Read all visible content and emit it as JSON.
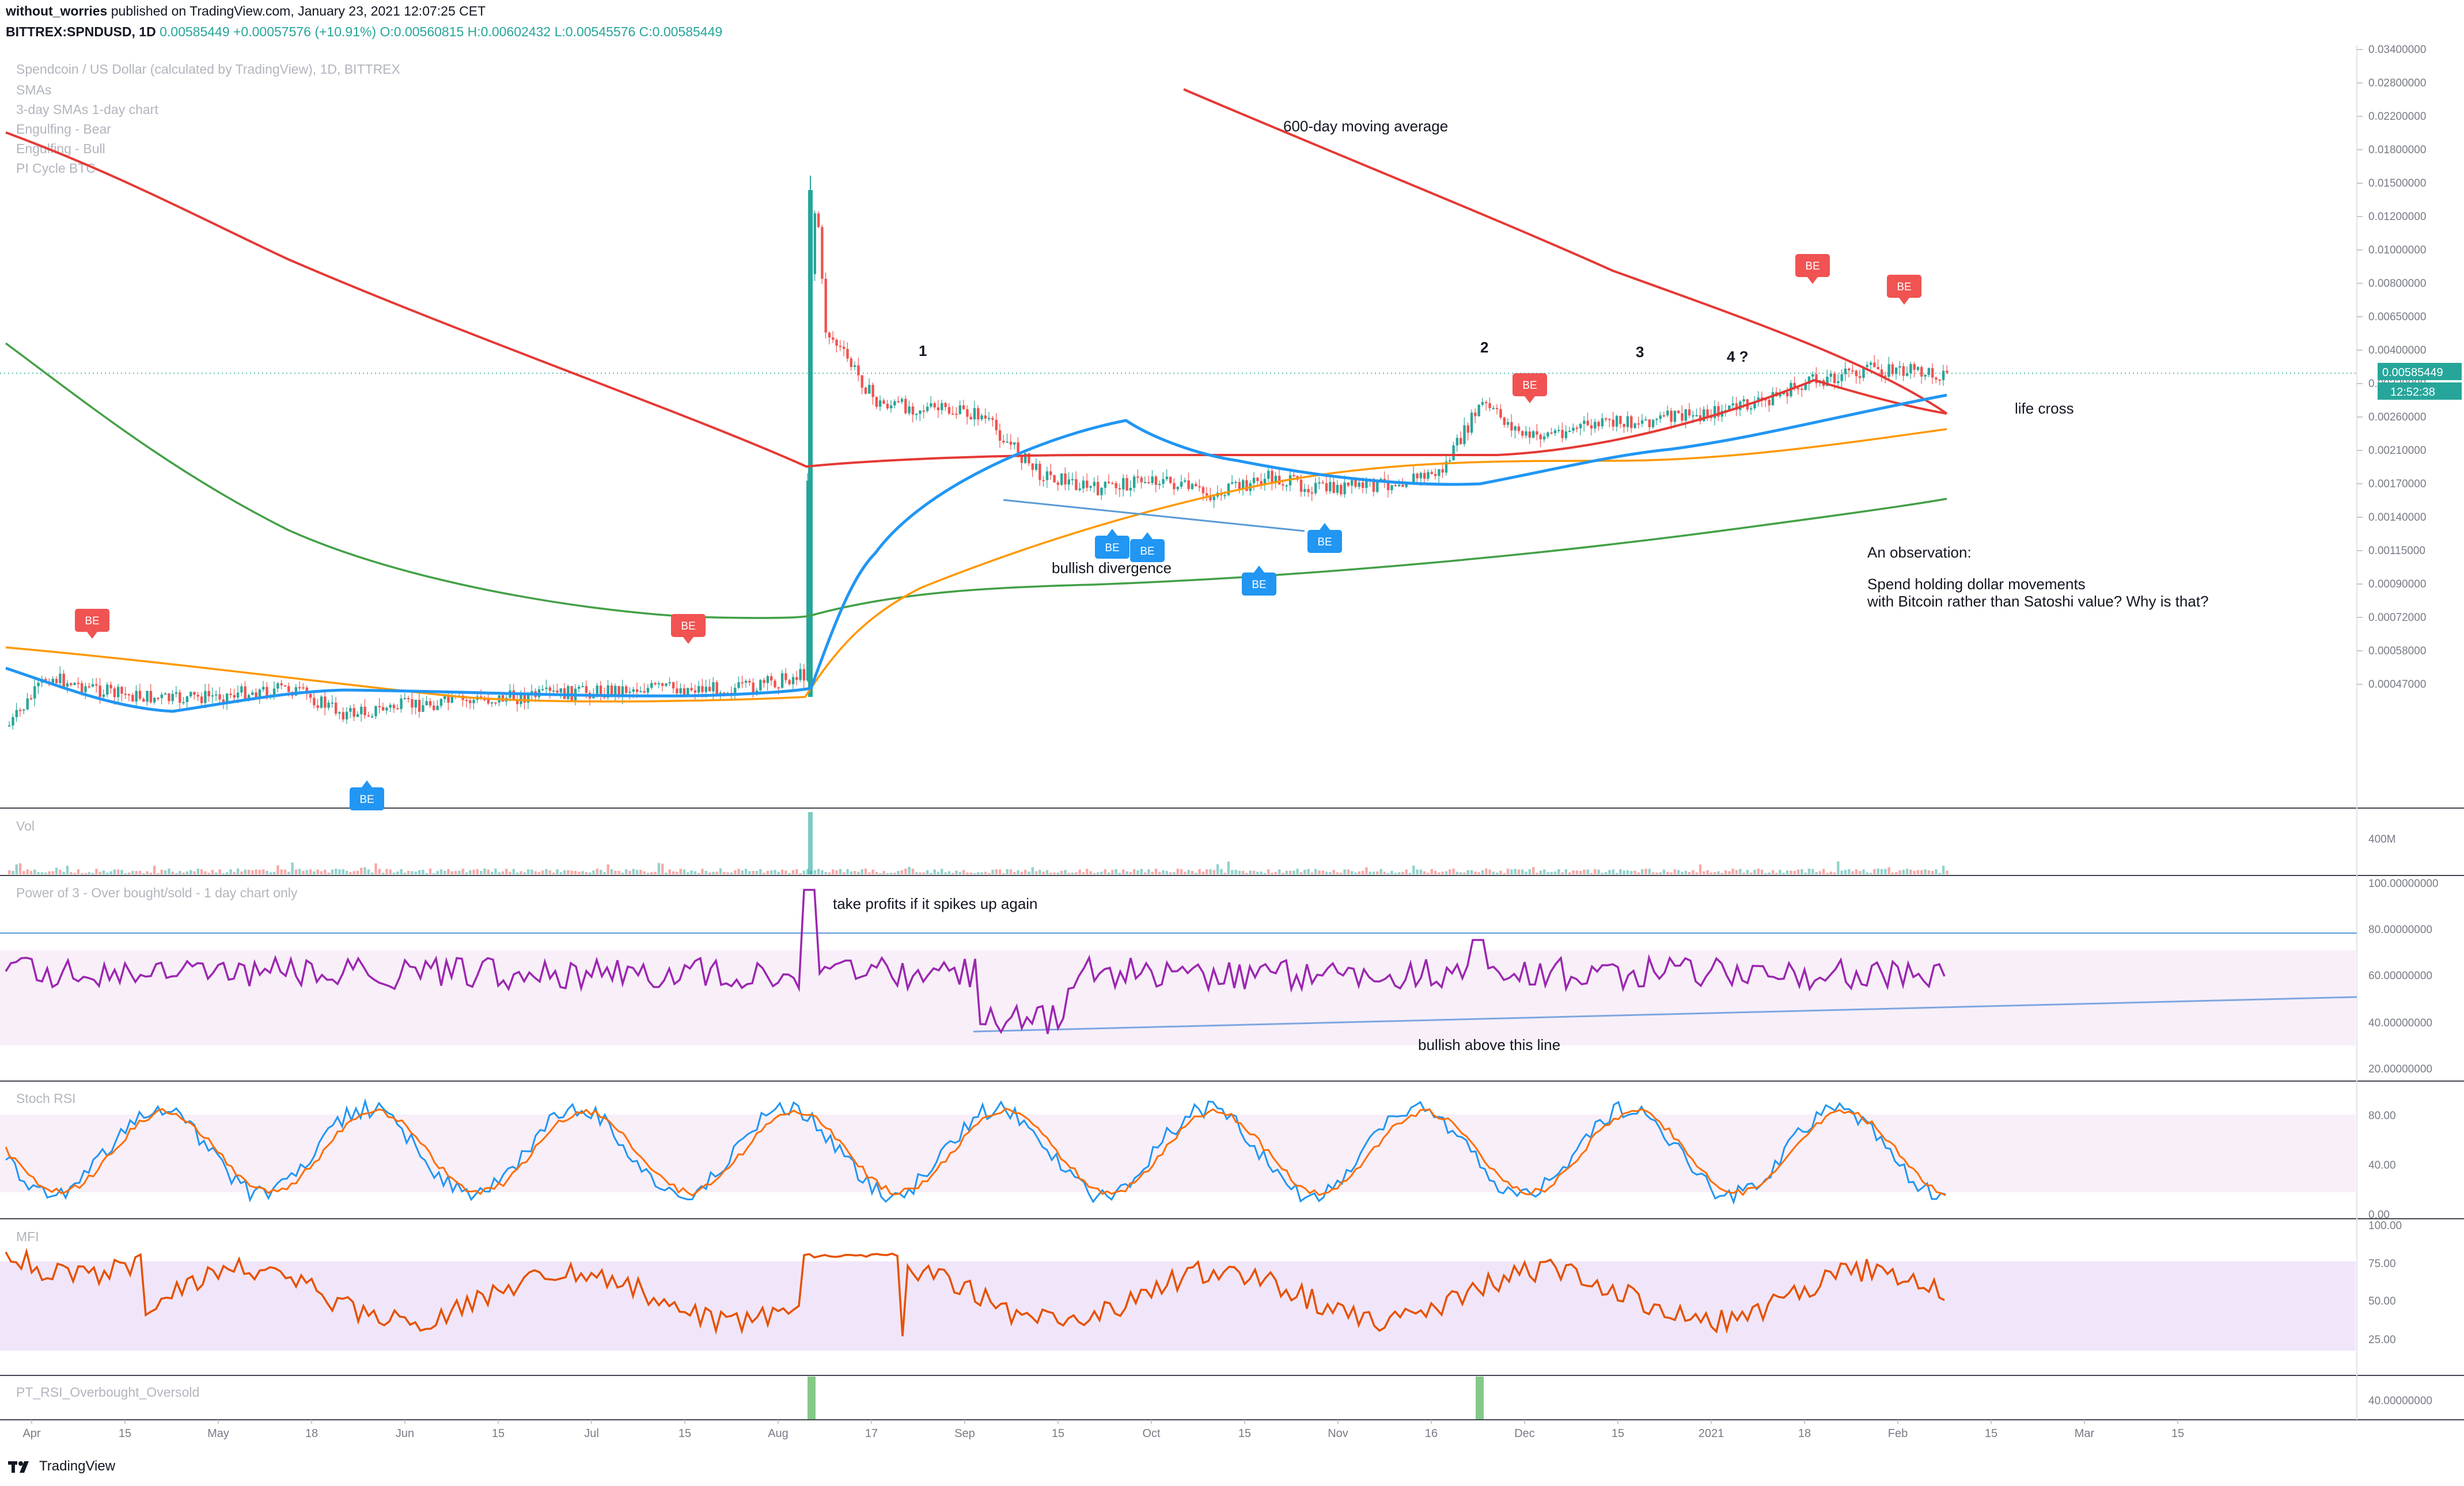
{
  "header": {
    "publisher": "without_worries",
    "published_text": "published on TradingView.com, January 23, 2021 12:07:25 CET",
    "symbol": "BITTREX:SPNDUSD, 1D",
    "last": "0.00585449",
    "change": "+0.00057576 (+10.91%)",
    "open": "O:0.00560815",
    "high": "H:0.00602432",
    "low": "L:0.00545576",
    "close": "C:0.00585449"
  },
  "legend": {
    "title": "Spendcoin / US Dollar (calculated by TradingView), 1D, BITTREX",
    "items": [
      "SMAs",
      "3-day SMAs 1-day chart",
      "Engulfing - Bear",
      "Engulfing - Bull",
      "PI Cycle BTC"
    ]
  },
  "price_axis": {
    "labels": [
      "0.03400000",
      "0.02800000",
      "0.02200000",
      "0.01800000",
      "0.01500000",
      "0.01200000",
      "0.01000000",
      "0.00800000",
      "0.00650000",
      "0.00400000",
      "0.00320000",
      "0.00260000",
      "0.00210000",
      "0.00170000",
      "0.00140000",
      "0.00115000",
      "0.00090000",
      "0.00072000",
      "0.00058000",
      "0.00047000"
    ],
    "last_price_label": "0.00585449",
    "countdown_label": "12:52:38"
  },
  "panes": {
    "volume": {
      "label": "Vol",
      "axis_label": "400M"
    },
    "power": {
      "label": "Power of 3 - Over bought/sold - 1 day chart only",
      "axis_labels": [
        "100.00000000",
        "80.00000000",
        "60.00000000",
        "40.00000000",
        "20.00000000"
      ]
    },
    "stoch": {
      "label": "Stoch RSI",
      "axis_labels": [
        "80.00",
        "40.00",
        "0.00"
      ]
    },
    "mfi": {
      "label": "MFI",
      "axis_labels": [
        "100.00",
        "75.00",
        "50.00",
        "25.00"
      ]
    },
    "pt": {
      "label": "PT_RSI_Overbought_Oversold",
      "axis_labels": [
        "40.00000000"
      ]
    }
  },
  "time_axis": {
    "labels": [
      "Apr",
      "15",
      "May",
      "18",
      "Jun",
      "15",
      "Jul",
      "15",
      "Aug",
      "17",
      "Sep",
      "15",
      "Oct",
      "15",
      "Nov",
      "16",
      "Dec",
      "15",
      "2021",
      "18",
      "Feb",
      "15",
      "Mar",
      "15"
    ]
  },
  "annotations": {
    "ma600": "600-day moving average",
    "life_cross": "life cross",
    "bullish_divergence": "bullish divergence",
    "observation_title": "An observation:",
    "observation_line1": "Spend holding dollar movements",
    "observation_line2": "with Bitcoin rather than Satoshi value? Why is that?",
    "take_profits": "take profits if it spikes up again",
    "bullish_above": "bullish above this line",
    "wave_labels": [
      "1",
      "2",
      "3",
      "4 ?"
    ],
    "signal_label": "BE"
  },
  "colors": {
    "up": "#26a69a",
    "down": "#ef5350",
    "sma_red": "#e53935",
    "sma_blue": "#2196f3",
    "sma_orange": "#ff9800",
    "sma_green": "#43a047",
    "rsi": "#9c27b0",
    "stoch_k": "#2196f3",
    "stoch_d": "#ff6d00",
    "mfi": "#e65100",
    "band": "#f3e5f5"
  },
  "chart_data": {
    "type": "line",
    "scale": "log",
    "series": [
      {
        "name": "SPNDUSD close",
        "x": [
          "Apr",
          "May",
          "Jun",
          "Jul",
          "Aug",
          "Sep",
          "Oct",
          "Nov",
          "Dec",
          "2021"
        ],
        "values": [
          0.00085,
          0.0009,
          0.00088,
          0.0009,
          0.0054,
          0.0036,
          0.003,
          0.0035,
          0.0044,
          0.00585
        ]
      }
    ]
  },
  "footer": {
    "brand": "TradingView"
  }
}
